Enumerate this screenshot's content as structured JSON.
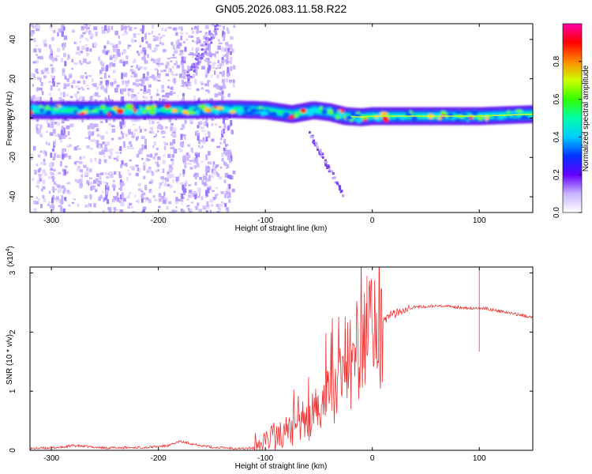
{
  "title": "GN05.2026.083.11.58.R22",
  "chart_data": [
    {
      "type": "heatmap",
      "panel": "spectrogram",
      "xlabel": "Height of straight line (km)",
      "ylabel": "Frequency (Hz)",
      "xlim": [
        -320,
        150
      ],
      "ylim": [
        -48,
        48
      ],
      "xticks": [
        -300,
        -200,
        -100,
        0,
        100
      ],
      "yticks": [
        -40,
        -20,
        0,
        20,
        40
      ],
      "colorbar": {
        "label": "Normalized spectral amplitude",
        "range": [
          0,
          1
        ],
        "ticks": [
          0.0,
          0.2,
          0.4,
          0.6,
          0.8
        ],
        "tick_labels": [
          "0.0",
          "0.2",
          "0.4",
          "0.6",
          "0.8"
        ]
      },
      "band": {
        "description": "main signal band",
        "x": [
          -320,
          -200,
          -130,
          -100,
          -75,
          -55,
          -40,
          -25,
          -10,
          0,
          20,
          60,
          100,
          150
        ],
        "center_hz": [
          4,
          4,
          4.5,
          4,
          2,
          4,
          3,
          1,
          0.5,
          1,
          1,
          1,
          1,
          2
        ]
      }
    },
    {
      "type": "line",
      "panel": "snr",
      "xlabel": "Height of straight line (km)",
      "ylabel": "SNR (10 * v/v)",
      "scale_note": "(x10",
      "scale_exp": "4",
      "scale_close": ")",
      "xlim": [
        -320,
        150
      ],
      "ylim": [
        0,
        3.1
      ],
      "xticks": [
        -300,
        -200,
        -100,
        0,
        100
      ],
      "yticks": [
        0,
        1,
        2,
        3
      ],
      "color": "#ee3333",
      "series": [
        {
          "name": "SNR envelope",
          "x": [
            -320,
            -290,
            -280,
            -250,
            -210,
            -190,
            -180,
            -150,
            -120,
            -105,
            -95,
            -80,
            -60,
            -50,
            -40,
            -30,
            -20,
            -10,
            0,
            10,
            20,
            30,
            40,
            60,
            80,
            95,
            100,
            105,
            120,
            150
          ],
          "y": [
            0.03,
            0.05,
            0.08,
            0.04,
            0.05,
            0.08,
            0.15,
            0.05,
            0.03,
            0.05,
            0.2,
            0.3,
            0.5,
            0.7,
            0.9,
            1.2,
            1.5,
            1.8,
            2.0,
            2.2,
            2.3,
            2.4,
            2.42,
            2.44,
            2.42,
            2.4,
            2.4,
            2.4,
            2.35,
            2.25
          ]
        }
      ],
      "spikes": [
        {
          "x": -5,
          "y": 2.95
        },
        {
          "x": -25,
          "y": 2.05
        },
        {
          "x": 100,
          "y": 3.08
        },
        {
          "x": 100,
          "y": 1.67
        }
      ]
    }
  ]
}
